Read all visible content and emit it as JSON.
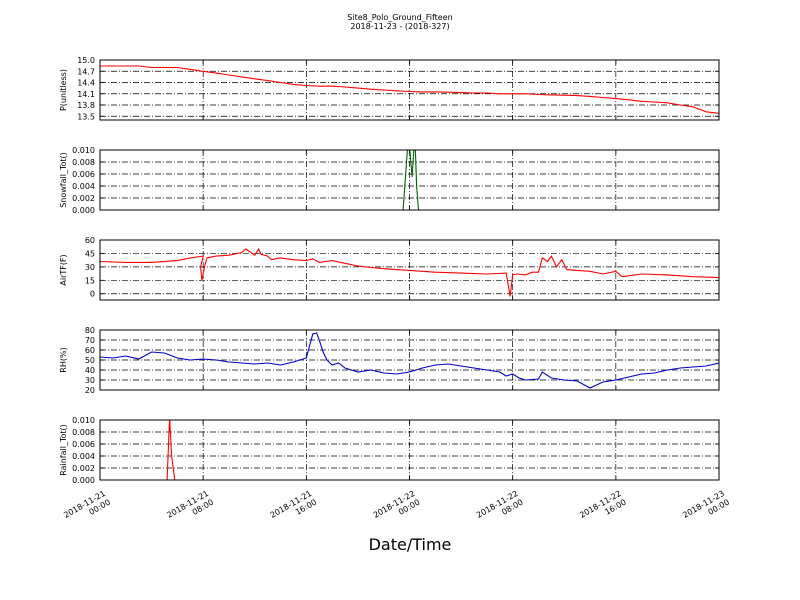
{
  "title": "Site8_Polo_Ground_Fifteen",
  "subtitle": "2018-11-23 - (2018-327)",
  "xlabel": "Date/Time",
  "x_ticks": [
    [
      "2018-11-21",
      "00:00"
    ],
    [
      "2018-11-21",
      "08:00"
    ],
    [
      "2018-11-21",
      "16:00"
    ],
    [
      "2018-11-22",
      "00:00"
    ],
    [
      "2018-11-22",
      "08:00"
    ],
    [
      "2018-11-22",
      "16:00"
    ],
    [
      "2018-11-23",
      "00:00"
    ]
  ],
  "colors": {
    "red": "#ff0000",
    "green": "#006400",
    "blue": "#0000cc"
  },
  "chart_data": [
    {
      "type": "line",
      "ylabel": "P(unitless)",
      "ylim": [
        13.4,
        15.0
      ],
      "yticks": [
        "15.0",
        "14.7",
        "14.4",
        "14.1",
        "13.8",
        "13.5"
      ],
      "ytick_values": [
        15.0,
        14.7,
        14.4,
        14.1,
        13.8,
        13.5
      ],
      "grid": true,
      "series": [
        {
          "color": "red",
          "x": [
            0,
            1,
            2,
            3,
            4,
            5,
            6,
            7,
            8,
            9,
            10,
            11,
            12,
            13,
            14,
            15,
            16,
            17,
            18,
            19,
            20,
            21,
            22,
            23,
            24,
            25,
            26,
            27,
            28,
            29,
            30,
            31,
            32,
            33,
            34,
            35,
            36,
            37,
            38,
            39,
            40,
            41,
            42,
            43,
            44,
            45,
            46,
            47,
            48
          ],
          "values": [
            14.84,
            14.84,
            14.84,
            14.84,
            14.8,
            14.8,
            14.8,
            14.75,
            14.7,
            14.65,
            14.6,
            14.55,
            14.5,
            14.45,
            14.4,
            14.35,
            14.32,
            14.3,
            14.3,
            14.28,
            14.25,
            14.22,
            14.2,
            14.18,
            14.16,
            14.15,
            14.15,
            14.14,
            14.13,
            14.12,
            14.12,
            14.1,
            14.1,
            14.1,
            14.08,
            14.07,
            14.06,
            14.05,
            14.03,
            14.0,
            13.97,
            13.94,
            13.9,
            13.88,
            13.86,
            13.8,
            13.75,
            13.62,
            13.58
          ]
        }
      ]
    },
    {
      "type": "line",
      "ylabel": "Snowfall_Tot()",
      "ylim": [
        0.0,
        0.01
      ],
      "yticks": [
        "0.010",
        "0.008",
        "0.006",
        "0.004",
        "0.002",
        "0.000"
      ],
      "ytick_values": [
        0.01,
        0.008,
        0.006,
        0.004,
        0.002,
        0.0
      ],
      "grid": true,
      "series": [
        {
          "color": "green",
          "x": [
            0,
            23.5,
            23.85,
            24.0,
            24.2,
            24.35,
            24.45,
            24.55,
            24.7,
            48
          ],
          "values": [
            0,
            0,
            0.0105,
            0.0105,
            0.0055,
            0.0105,
            0.0105,
            0.004,
            0,
            0
          ]
        }
      ]
    },
    {
      "type": "line",
      "ylabel": "AirTF(F)",
      "ylim": [
        -7,
        60
      ],
      "yticks": [
        "60",
        "45",
        "30",
        "15",
        "0"
      ],
      "ytick_values": [
        60,
        45,
        30,
        15,
        0
      ],
      "grid": true,
      "series": [
        {
          "color": "red",
          "x": [
            0,
            2,
            4,
            6,
            7,
            8,
            7.8,
            7.9,
            8.1,
            8.3,
            9,
            10,
            11,
            11.3,
            11.6,
            12,
            12.3,
            12.5,
            13,
            13.3,
            14,
            15,
            16,
            16.5,
            17,
            18,
            19,
            20,
            22,
            24,
            26,
            28,
            30,
            31.5,
            31.8,
            32.0,
            32.3,
            33,
            33.5,
            34,
            34.3,
            34.7,
            35,
            35.4,
            35.8,
            36.2,
            37,
            38,
            39,
            40,
            40.5,
            41,
            42,
            44,
            46,
            48
          ],
          "values": [
            36,
            35,
            35,
            37,
            40,
            42,
            30,
            15,
            30,
            40,
            42,
            43,
            46,
            50,
            47,
            43,
            50,
            44,
            42,
            38,
            40,
            38,
            37,
            39,
            35,
            37,
            34,
            31,
            28,
            26,
            24,
            23,
            22,
            23,
            -3,
            21,
            22,
            21,
            24,
            24,
            40,
            36,
            42,
            30,
            38,
            27,
            26,
            25,
            22,
            25,
            19,
            20,
            22,
            21,
            19,
            18
          ]
        }
      ]
    },
    {
      "type": "line",
      "ylabel": "RH(%)",
      "ylim": [
        20,
        80
      ],
      "yticks": [
        "80",
        "70",
        "60",
        "50",
        "40",
        "30",
        "20"
      ],
      "ytick_values": [
        80,
        70,
        60,
        50,
        40,
        30,
        20
      ],
      "grid": true,
      "series": [
        {
          "color": "blue",
          "x": [
            0,
            1,
            2,
            3,
            4,
            5,
            6,
            7,
            8,
            9,
            10,
            11,
            12,
            13,
            14,
            15,
            16,
            16.5,
            16.8,
            17,
            17.3,
            17.6,
            18,
            18.5,
            19,
            20,
            21,
            22,
            23,
            24,
            25,
            26,
            27,
            28,
            29,
            30,
            31,
            31.5,
            32,
            32.5,
            33,
            34,
            34.3,
            35,
            36,
            37,
            38,
            39,
            40,
            41,
            42,
            43,
            44,
            45,
            46,
            47,
            48
          ],
          "values": [
            53,
            52,
            54,
            51,
            58,
            57,
            52,
            50,
            51,
            50,
            48,
            47,
            46,
            47,
            45,
            48,
            52,
            76,
            77,
            70,
            58,
            50,
            45,
            47,
            42,
            38,
            40,
            37,
            36,
            38,
            42,
            45,
            46,
            44,
            42,
            40,
            38,
            34,
            36,
            32,
            30,
            31,
            38,
            32,
            30,
            29,
            22,
            28,
            30,
            33,
            36,
            37,
            40,
            42,
            43,
            44,
            47
          ]
        }
      ]
    },
    {
      "type": "line",
      "ylabel": "Rainfall_Tot()",
      "ylim": [
        0.0,
        0.01
      ],
      "yticks": [
        "0.010",
        "0.008",
        "0.006",
        "0.004",
        "0.002",
        "0.000"
      ],
      "ytick_values": [
        0.01,
        0.008,
        0.006,
        0.004,
        0.002,
        0.0
      ],
      "grid": true,
      "series": [
        {
          "color": "red",
          "x": [
            0,
            5.2,
            5.4,
            5.55,
            5.8,
            48
          ],
          "values": [
            0,
            0,
            0.0105,
            0.004,
            0,
            0
          ]
        }
      ]
    }
  ],
  "x_range": [
    0,
    48
  ]
}
